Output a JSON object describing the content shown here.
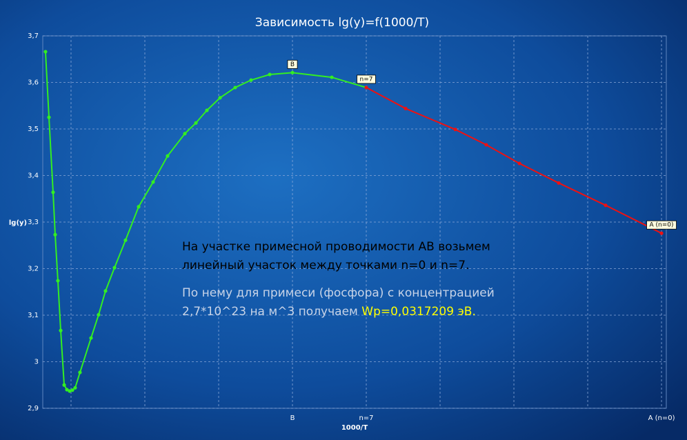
{
  "chart_data": {
    "type": "line",
    "title": "Зависимость lg(y)=f(1000/T)",
    "xlabel": "1000/T",
    "ylabel": "lg(y)",
    "xlim": [
      -0.383,
      8.065
    ],
    "ylim": [
      2.9,
      3.7
    ],
    "xticks": [
      {
        "value": 0,
        "label": null
      },
      {
        "value": 1,
        "label": null
      },
      {
        "value": 2,
        "label": null
      },
      {
        "value": 3,
        "label": "B"
      },
      {
        "value": 4,
        "label": "n=7"
      },
      {
        "value": 5,
        "label": null
      },
      {
        "value": 6,
        "label": null
      },
      {
        "value": 7,
        "label": null
      },
      {
        "value": 8,
        "label": "A (n=0)"
      }
    ],
    "yticks": [
      {
        "value": 2.9,
        "label": "2,9"
      },
      3,
      {
        "value": 3.1,
        "label": "3,1"
      },
      {
        "value": 3.2,
        "label": "3,2"
      },
      {
        "value": 3.3,
        "label": "3,3"
      },
      {
        "value": 3.4,
        "label": "3,4"
      },
      {
        "value": 3.5,
        "label": "3,5"
      },
      {
        "value": 3.6,
        "label": "3,6"
      },
      {
        "value": 3.7,
        "label": "3,7"
      }
    ],
    "grid": true,
    "series": [
      {
        "color": "#33ee22",
        "x": [
          -0.346,
          -0.299,
          -0.243,
          -0.215,
          -0.178,
          -0.14,
          -0.093,
          -0.056,
          -0.019,
          0.019,
          0.056,
          0.121,
          0.271,
          0.374,
          0.467,
          0.589,
          0.738,
          0.916,
          1.112,
          1.308,
          1.542,
          1.692,
          1.841,
          2.019,
          2.224,
          2.439,
          2.692,
          3.0,
          3.533,
          4.0
        ],
        "values": [
          3.666,
          3.525,
          3.364,
          3.273,
          3.174,
          3.067,
          2.95,
          2.94,
          2.937,
          2.939,
          2.944,
          2.977,
          3.051,
          3.101,
          3.152,
          3.202,
          3.261,
          3.333,
          3.386,
          3.442,
          3.49,
          3.513,
          3.54,
          3.567,
          3.589,
          3.605,
          3.617,
          3.621,
          3.611,
          3.589
        ]
      },
      {
        "color": "#ee1111",
        "x": [
          4.0,
          4.533,
          5.206,
          5.626,
          6.075,
          6.607,
          7.243,
          8.0
        ],
        "values": [
          3.589,
          3.544,
          3.499,
          3.466,
          3.426,
          3.384,
          3.336,
          3.276
        ]
      }
    ],
    "point_labels": [
      {
        "text": "B",
        "x": 3.0,
        "y": 3.621
      },
      {
        "text": "n=7",
        "x": 4.0,
        "y": 3.589
      },
      {
        "text": "A (n=0)",
        "x": 8.0,
        "y": 3.276
      }
    ],
    "annotations": [
      {
        "text": "На участке примесной проводимости АВ возьмем",
        "color": "#000000"
      },
      {
        "text": "линейный участок между точками n=0  и n=7.",
        "color": "#000000"
      },
      {
        "text": "По нему для примеси (фосфора) с концентрацией",
        "color": "#c8d4e8"
      },
      {
        "text": "2,7*10^23 на м^3 получаем ",
        "color": "#c8d4e8",
        "highlight": "Wp=0,0317209 эВ.",
        "highlight_color": "#ffff00"
      }
    ]
  }
}
